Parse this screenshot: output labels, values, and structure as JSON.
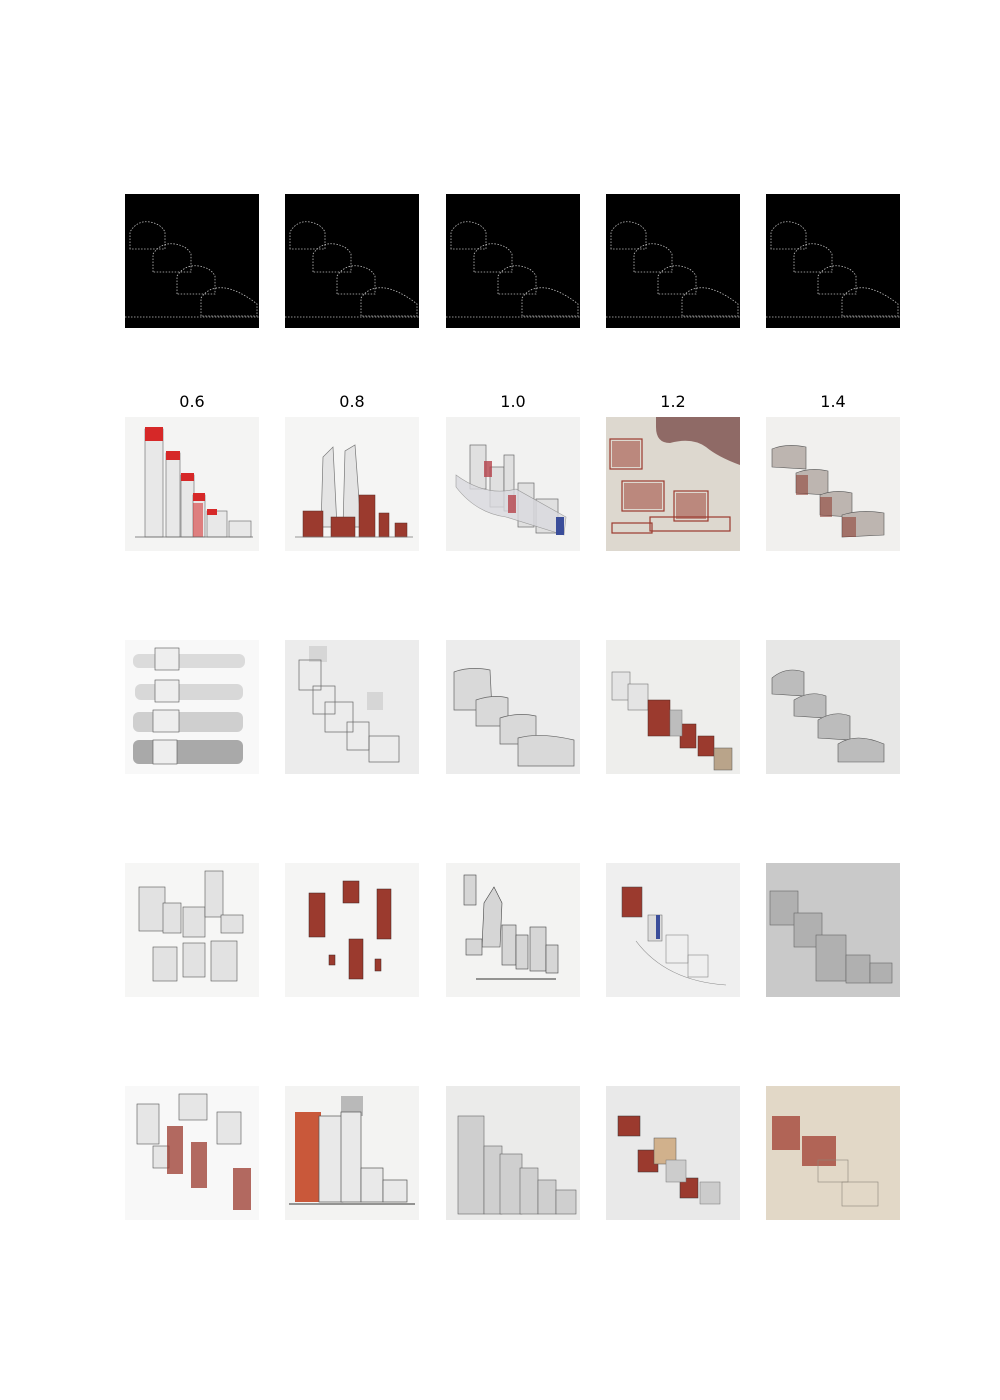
{
  "columns": [
    "0.6",
    "0.8",
    "1.0",
    "1.2",
    "1.4"
  ],
  "colors": {
    "background": "#ffffff",
    "condition_bg": "#000000",
    "condition_lines": "#bfbfbf",
    "paper": "#f3f3f2",
    "brick": "#9b3a2e",
    "red_accent": "#d62828",
    "pencil": "#6b6b6b",
    "beige_paper": "#e6dccb"
  }
}
